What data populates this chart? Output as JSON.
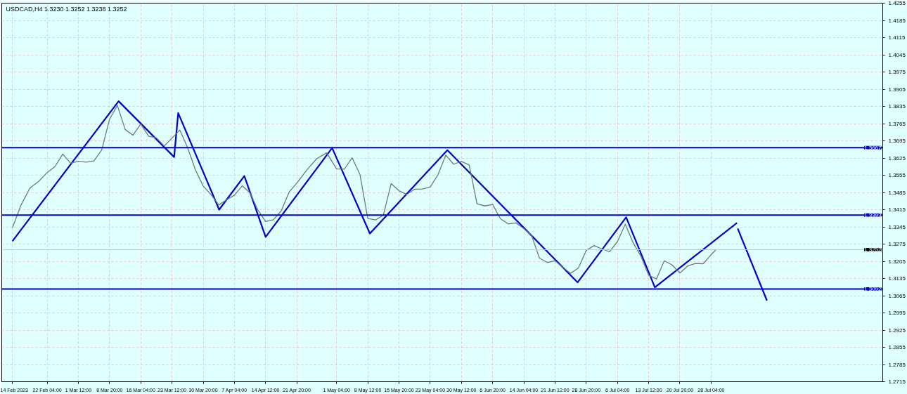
{
  "chart_data": {
    "type": "line",
    "title": "USDCAD,H4  1.3230 1.3252 1.3238 1.3252",
    "series": [
      {
        "color": "#6f7a78",
        "x": [
          "2023-02-14T00:00",
          "2023-02-16T01:00",
          "2023-02-18T02:00",
          "2023-02-20T03:00",
          "2023-02-22T04:00",
          "2023-02-24T00:00",
          "2023-02-25T20:00",
          "2023-02-27T16:00",
          "2023-03-01T12:00",
          "2023-03-03T08:00",
          "2023-03-05T04:00",
          "2023-03-07T00:00",
          "2023-03-08T20:00",
          "2023-03-10T16:00",
          "2023-03-12T12:00",
          "2023-03-14T08:00",
          "2023-03-16T04:00",
          "2023-03-18T00:00",
          "2023-03-19T20:00",
          "2023-03-21T16:00",
          "2023-03-23T12:00",
          "2023-03-25T08:00",
          "2023-03-27T04:00",
          "2023-03-29T00:00",
          "2023-03-30T20:00",
          "2023-04-01T16:00",
          "2023-04-03T12:00",
          "2023-04-05T08:00",
          "2023-04-07T04:00",
          "2023-04-09T00:00",
          "2023-04-10T20:00",
          "2023-04-12T16:00",
          "2023-04-14T12:00",
          "2023-04-16T08:00",
          "2023-04-18T04:00",
          "2023-04-20T00:00",
          "2023-04-21T20:00",
          "2023-04-24T04:00",
          "2023-04-26T12:00",
          "2023-04-28T20:00",
          "2023-05-01T04:00",
          "2023-05-03T00:00",
          "2023-05-04T20:00",
          "2023-05-06T16:00",
          "2023-05-08T12:00",
          "2023-05-10T08:00",
          "2023-05-12T04:00",
          "2023-05-14T00:00",
          "2023-05-15T20:00",
          "2023-05-17T16:00",
          "2023-05-19T12:00",
          "2023-05-21T08:00",
          "2023-05-23T04:00",
          "2023-05-25T00:00",
          "2023-05-26T20:00",
          "2023-05-28T16:00",
          "2023-05-30T12:00",
          "2023-06-01T08:00",
          "2023-06-03T04:00",
          "2023-06-05T00:00",
          "2023-06-06T20:00",
          "2023-06-08T16:00",
          "2023-06-10T12:00",
          "2023-06-12T08:00",
          "2023-06-14T04:00",
          "2023-06-16T00:00",
          "2023-06-17T20:00",
          "2023-06-19T16:00",
          "2023-06-21T12:00",
          "2023-06-23T08:00",
          "2023-06-25T04:00",
          "2023-06-27T00:00",
          "2023-06-28T20:00",
          "2023-06-30T16:00",
          "2023-07-02T12:00",
          "2023-07-04T08:00",
          "2023-07-06T04:00",
          "2023-07-08T00:00",
          "2023-07-09T20:00",
          "2023-07-11T16:00",
          "2023-07-13T12:00",
          "2023-07-15T08:00",
          "2023-07-17T04:00",
          "2023-07-19T00:00",
          "2023-07-20T20:00",
          "2023-07-22T16:00",
          "2023-07-24T12:00",
          "2023-07-26T08:00",
          "2023-07-28T04:00",
          "2023-07-29T08:00"
        ],
        "values": [
          1.3341,
          1.3434,
          1.3502,
          1.3529,
          1.3566,
          1.359,
          1.3641,
          1.3604,
          1.3612,
          1.3608,
          1.3613,
          1.3658,
          1.3783,
          1.3839,
          1.3741,
          1.3718,
          1.3763,
          1.3714,
          1.3707,
          1.3674,
          1.3706,
          1.3739,
          1.3667,
          1.3577,
          1.3511,
          1.3476,
          1.3434,
          1.3455,
          1.3474,
          1.3512,
          1.3483,
          1.3414,
          1.3367,
          1.3374,
          1.341,
          1.3486,
          1.3523,
          1.3576,
          1.3622,
          1.3646,
          1.3581,
          1.358,
          1.3626,
          1.3558,
          1.3379,
          1.3373,
          1.3393,
          1.3521,
          1.3492,
          1.3477,
          1.3498,
          1.3499,
          1.3507,
          1.3557,
          1.3637,
          1.36,
          1.3611,
          1.3597,
          1.3439,
          1.343,
          1.3436,
          1.3378,
          1.3357,
          1.3361,
          1.3338,
          1.331,
          1.3218,
          1.32,
          1.3207,
          1.318,
          1.3156,
          1.3178,
          1.3249,
          1.3269,
          1.3255,
          1.3244,
          1.3285,
          1.3356,
          1.3281,
          1.3226,
          1.3148,
          1.3133,
          1.3207,
          1.319,
          1.3157,
          1.3186,
          1.3196,
          1.3195,
          1.3232,
          1.3252
        ]
      },
      {
        "color": "#0000cc",
        "x": [
          "2023-02-14T00:00",
          "2023-03-10T23:00",
          "2023-03-24T00:00",
          "2023-03-24T23:00",
          "2023-04-03T14:00",
          "2023-04-09T12:00",
          "2023-04-14T12:00",
          "2023-04-30T03:00",
          "2023-05-09T00:00",
          "2023-05-27T05:00",
          "2023-06-26T19:00",
          "2023-07-08T05:00",
          "2023-07-14T23:00",
          "2023-08-03T06:00"
        ],
        "values": [
          1.3287,
          1.3856,
          1.3629,
          1.3808,
          1.3415,
          1.3552,
          1.3304,
          1.3666,
          1.3318,
          1.3657,
          1.3119,
          1.3384,
          1.3099,
          1.3361
        ]
      },
      {
        "color": "#0000cc",
        "x": [
          "2023-08-03T10:00",
          "2023-08-10T07:00"
        ],
        "values": [
          1.3338,
          1.3045
        ]
      }
    ],
    "xlim": [
      "2023-02-11T12:00",
      "2023-09-06T12:00"
    ],
    "xticks": [
      {
        "value": "2023-02-14T00:00",
        "label": "14 Feb 2023"
      },
      {
        "value": "2023-02-22T04:00",
        "label": "22 Feb 04:00"
      },
      {
        "value": "2023-03-01T12:00",
        "label": "1 Mar 12:00"
      },
      {
        "value": "2023-03-08T20:00",
        "label": "8 Mar 20:00"
      },
      {
        "value": "2023-03-16T04:00",
        "label": "16 Mar 04:00"
      },
      {
        "value": "2023-03-23T12:00",
        "label": "23 Mar 12:00"
      },
      {
        "value": "2023-03-30T20:00",
        "label": "30 Mar 20:00"
      },
      {
        "value": "2023-04-07T04:00",
        "label": "7 Apr 04:00"
      },
      {
        "value": "2023-04-14T12:00",
        "label": "14 Apr 12:00"
      },
      {
        "value": "2023-04-21T20:00",
        "label": "21 Apr 20:00"
      },
      {
        "value": "2023-05-01T04:00",
        "label": "1 May 04:00"
      },
      {
        "value": "2023-05-08T12:00",
        "label": "8 May 12:00"
      },
      {
        "value": "2023-05-15T20:00",
        "label": "15 May 20:00"
      },
      {
        "value": "2023-05-23T04:00",
        "label": "23 May 04:00"
      },
      {
        "value": "2023-05-30T12:00",
        "label": "30 May 12:00"
      },
      {
        "value": "2023-06-06T20:00",
        "label": "6 Jun 20:00"
      },
      {
        "value": "2023-06-14T04:00",
        "label": "14 Jun 04:00"
      },
      {
        "value": "2023-06-21T12:00",
        "label": "21 Jun 12:00"
      },
      {
        "value": "2023-06-28T20:00",
        "label": "28 Jun 20:00"
      },
      {
        "value": "2023-07-06T04:00",
        "label": "6 Jul 04:00"
      },
      {
        "value": "2023-07-13T12:00",
        "label": "13 Jul 12:00"
      },
      {
        "value": "2023-07-20T20:00",
        "label": "20 Jul 20:00"
      },
      {
        "value": "2023-07-28T04:00",
        "label": "28 Jul 04:00"
      }
    ],
    "ylim": [
      1.2715,
      1.4255
    ],
    "yticks": [
      1.2715,
      1.2785,
      1.2855,
      1.2925,
      1.2995,
      1.3065,
      1.3135,
      1.3205,
      1.3275,
      1.3345,
      1.3415,
      1.3485,
      1.3555,
      1.3625,
      1.3695,
      1.3765,
      1.3835,
      1.3905,
      1.3975,
      1.4045,
      1.4115,
      1.4185,
      1.4255
    ],
    "ref_lines": [
      {
        "axis": "y",
        "value": 1.3667,
        "label": "1.3667",
        "color": "#0000cc"
      },
      {
        "axis": "y",
        "value": 1.3393,
        "label": "1.3393",
        "color": "#0000cc"
      },
      {
        "axis": "y",
        "value": 1.3092,
        "label": "1.3092",
        "color": "#0000cc"
      },
      {
        "axis": "y",
        "value": 1.3252,
        "label": "1.3252",
        "color": "#c8c8c8"
      }
    ],
    "grid": true,
    "marker": "none",
    "line_style": "solid"
  }
}
